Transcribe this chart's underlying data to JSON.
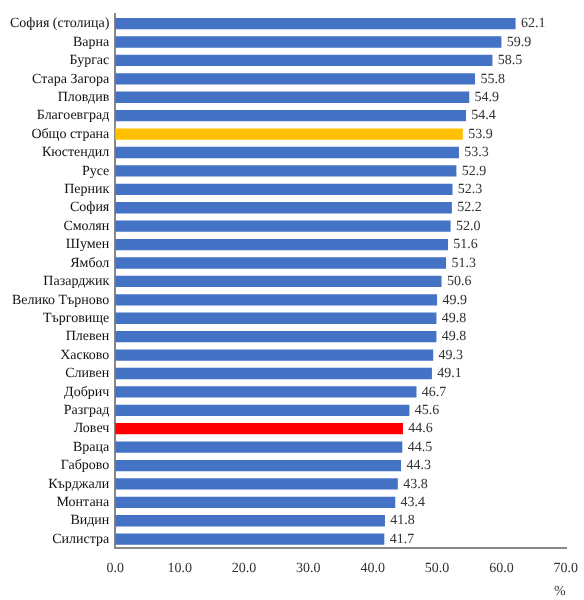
{
  "chart_data": {
    "type": "bar",
    "orientation": "horizontal",
    "xlabel": "%",
    "categories": [
      "София (столица)",
      "Варна",
      "Бургас",
      "Стара Загора",
      "Пловдив",
      "Благоевград",
      "Общо страна",
      "Кюстендил",
      "Русе",
      "Перник",
      "София",
      "Смолян",
      "Шумен",
      "Ямбол",
      "Пазарджик",
      "Велико Търново",
      "Търговище",
      "Плевен",
      "Хасково",
      "Сливен",
      "Добрич",
      "Разград",
      "Ловеч",
      "Враца",
      "Габрово",
      "Кърджали",
      "Монтана",
      "Видин",
      "Силистра"
    ],
    "values": [
      62.1,
      59.9,
      58.5,
      55.8,
      54.9,
      54.4,
      53.9,
      53.3,
      52.9,
      52.3,
      52.2,
      52.0,
      51.6,
      51.3,
      50.6,
      49.9,
      49.8,
      49.8,
      49.3,
      49.1,
      46.7,
      45.6,
      44.6,
      44.5,
      44.3,
      43.8,
      43.4,
      41.8,
      41.7
    ],
    "colors": [
      "#4472c4",
      "#4472c4",
      "#4472c4",
      "#4472c4",
      "#4472c4",
      "#4472c4",
      "#ffc000",
      "#4472c4",
      "#4472c4",
      "#4472c4",
      "#4472c4",
      "#4472c4",
      "#4472c4",
      "#4472c4",
      "#4472c4",
      "#4472c4",
      "#4472c4",
      "#4472c4",
      "#4472c4",
      "#4472c4",
      "#4472c4",
      "#4472c4",
      "#ff0000",
      "#4472c4",
      "#4472c4",
      "#4472c4",
      "#4472c4",
      "#4472c4",
      "#4472c4"
    ],
    "xlim": [
      0,
      70
    ],
    "xticks": [
      {
        "value": 0,
        "label": "0.0"
      },
      {
        "value": 10,
        "label": "10.0"
      },
      {
        "value": 20,
        "label": "20.0"
      },
      {
        "value": 30,
        "label": "30.0"
      },
      {
        "value": 40,
        "label": "40.0"
      },
      {
        "value": 50,
        "label": "50.0"
      },
      {
        "value": 60,
        "label": "60.0"
      },
      {
        "value": 70,
        "label": "70.0"
      }
    ],
    "value_labels": [
      "62.1",
      "59.9",
      "58.5",
      "55.8",
      "54.9",
      "54.4",
      "53.9",
      "53.3",
      "52.9",
      "52.3",
      "52.2",
      "52.0",
      "51.6",
      "51.3",
      "50.6",
      "49.9",
      "49.8",
      "49.8",
      "49.3",
      "49.1",
      "46.7",
      "45.6",
      "44.6",
      "44.5",
      "44.3",
      "43.8",
      "43.4",
      "41.8",
      "41.7"
    ],
    "grid": false,
    "legend": false
  }
}
